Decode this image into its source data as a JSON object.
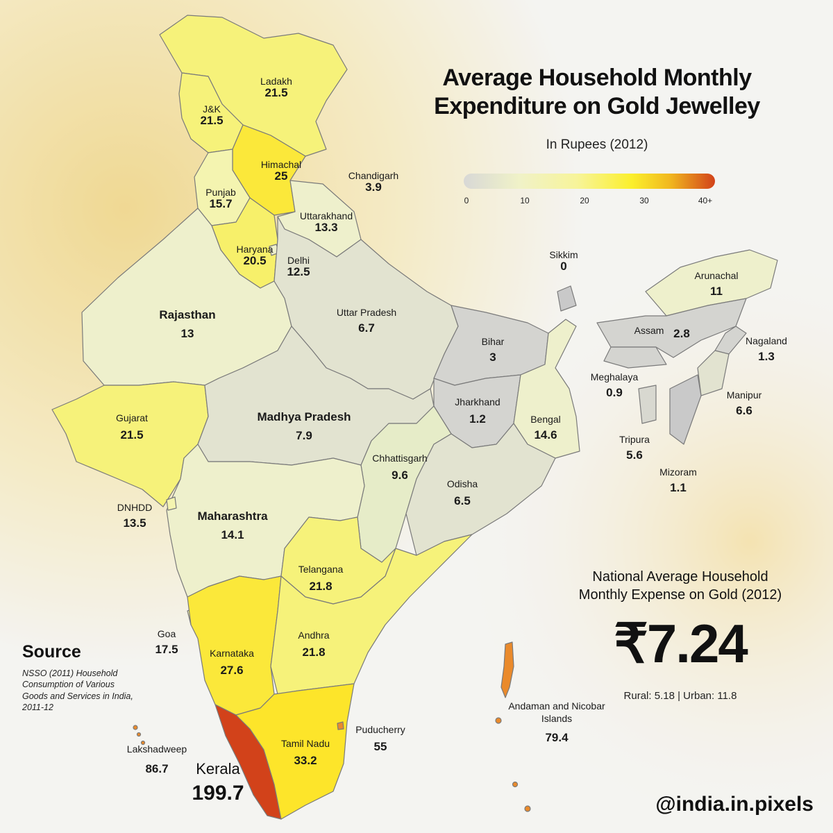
{
  "title_line1": "Average Household Monthly",
  "title_line2": "Expenditure on Gold Jewelley",
  "subtitle": "In Rupees (2012)",
  "legend": {
    "ticks": [
      "0",
      "10",
      "20",
      "30",
      "40+"
    ],
    "colors": {
      "low": "#d8d8d6",
      "mid": "#f7f49a",
      "high": "#fbef2c",
      "top": "#d2421a"
    }
  },
  "regions": [
    {
      "id": "ladakh",
      "name": "Ladakh",
      "value": "21.5"
    },
    {
      "id": "jk",
      "name": "J&K",
      "value": "21.5"
    },
    {
      "id": "himachal",
      "name": "Himachal",
      "value": "25"
    },
    {
      "id": "chandigarh",
      "name": "Chandigarh",
      "value": "3.9"
    },
    {
      "id": "punjab",
      "name": "Punjab",
      "value": "15.7"
    },
    {
      "id": "uttarakhand",
      "name": "Uttarakhand",
      "value": "13.3"
    },
    {
      "id": "haryana",
      "name": "Haryana",
      "value": "20.5"
    },
    {
      "id": "delhi",
      "name": "Delhi",
      "value": "12.5"
    },
    {
      "id": "sikkim",
      "name": "Sikkim",
      "value": "0"
    },
    {
      "id": "arunachal",
      "name": "Arunachal",
      "value": "11"
    },
    {
      "id": "rajasthan",
      "name": "Rajasthan",
      "value": "13"
    },
    {
      "id": "uttar-pradesh",
      "name": "Uttar Pradesh",
      "value": "6.7"
    },
    {
      "id": "bihar",
      "name": "Bihar",
      "value": "3"
    },
    {
      "id": "assam",
      "name": "Assam",
      "value": "2.8"
    },
    {
      "id": "nagaland",
      "name": "Nagaland",
      "value": "1.3"
    },
    {
      "id": "meghalaya",
      "name": "Meghalaya",
      "value": "0.9"
    },
    {
      "id": "manipur",
      "name": "Manipur",
      "value": "6.6"
    },
    {
      "id": "gujarat",
      "name": "Gujarat",
      "value": "21.5"
    },
    {
      "id": "madhya-pradesh",
      "name": "Madhya Pradesh",
      "value": "7.9"
    },
    {
      "id": "jharkhand",
      "name": "Jharkhand",
      "value": "1.2"
    },
    {
      "id": "bengal",
      "name": "Bengal",
      "value": "14.6"
    },
    {
      "id": "tripura",
      "name": "Tripura",
      "value": "5.6"
    },
    {
      "id": "chhattisgarh",
      "name": "Chhattisgarh",
      "value": "9.6"
    },
    {
      "id": "mizoram",
      "name": "Mizoram",
      "value": "1.1"
    },
    {
      "id": "odisha",
      "name": "Odisha",
      "value": "6.5"
    },
    {
      "id": "dnhdd",
      "name": "DNHDD",
      "value": "13.5"
    },
    {
      "id": "maharashtra",
      "name": "Maharashtra",
      "value": "14.1"
    },
    {
      "id": "telangana",
      "name": "Telangana",
      "value": "21.8"
    },
    {
      "id": "goa",
      "name": "Goa",
      "value": "17.5"
    },
    {
      "id": "andhra",
      "name": "Andhra",
      "value": "21.8"
    },
    {
      "id": "karnataka",
      "name": "Karnataka",
      "value": "27.6"
    },
    {
      "id": "andaman",
      "name": "Andaman and Nicobar Islands",
      "value": "79.4"
    },
    {
      "id": "puducherry",
      "name": "Puducherry",
      "value": "55"
    },
    {
      "id": "tamil-nadu",
      "name": "Tamil Nadu",
      "value": "33.2"
    },
    {
      "id": "lakshadweep",
      "name": "Lakshadweep",
      "value": "86.7"
    },
    {
      "id": "kerala",
      "name": "Kerala",
      "value": "199.7"
    }
  ],
  "national": {
    "title_line1": "National Average Household",
    "title_line2": "Monthly Expense on Gold (2012)",
    "value": "₹7.24",
    "breakdown": "Rural: 5.18 | Urban: 11.8"
  },
  "source": {
    "heading": "Source",
    "text": "NSSO (2011) Household Consumption of Various Goods and Services in India, 2011-12"
  },
  "handle": "@india.in.pixels",
  "fill_colors": {
    "grey": "#c9c9c9",
    "pale": "#eef0cc",
    "light": "#f4f4b0",
    "yellow": "#f7f06a",
    "strong": "#fbe83a",
    "gold": "#fde52a",
    "orange": "#ea8a2b",
    "red": "#d2421a"
  }
}
